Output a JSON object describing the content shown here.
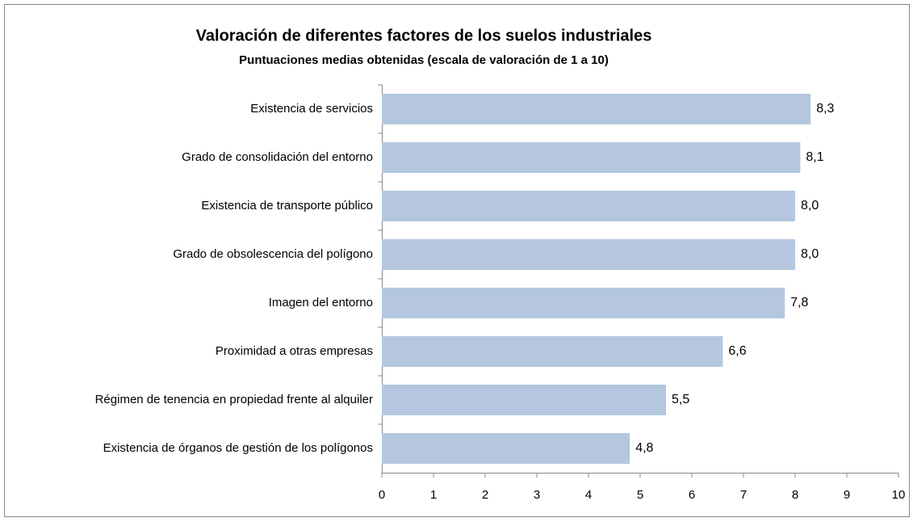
{
  "chart_data": {
    "type": "barh",
    "title": "Valoración de diferentes factores de los suelos industriales",
    "subtitle": "Puntuaciones medias obtenidas (escala de valoración de 1 a 10)",
    "categories": [
      "Existencia de servicios",
      "Grado de consolidación del entorno",
      "Existencia de transporte público",
      "Grado de obsolescencia del polígono",
      "Imagen del entorno",
      "Proximidad a otras empresas",
      "Régimen de tenencia en propiedad frente al alquiler",
      "Existencia de órganos de gestión de los polígonos"
    ],
    "values": [
      8.3,
      8.1,
      8.0,
      8.0,
      7.8,
      6.6,
      5.5,
      4.8
    ],
    "value_labels": [
      "8,3",
      "8,1",
      "8,0",
      "8,0",
      "7,8",
      "6,6",
      "5,5",
      "4,8"
    ],
    "color": "#b4c7de",
    "xlim": [
      0,
      10
    ],
    "xticks": [
      0,
      1,
      2,
      3,
      4,
      5,
      6,
      7,
      8,
      9,
      10
    ],
    "grid": false
  }
}
